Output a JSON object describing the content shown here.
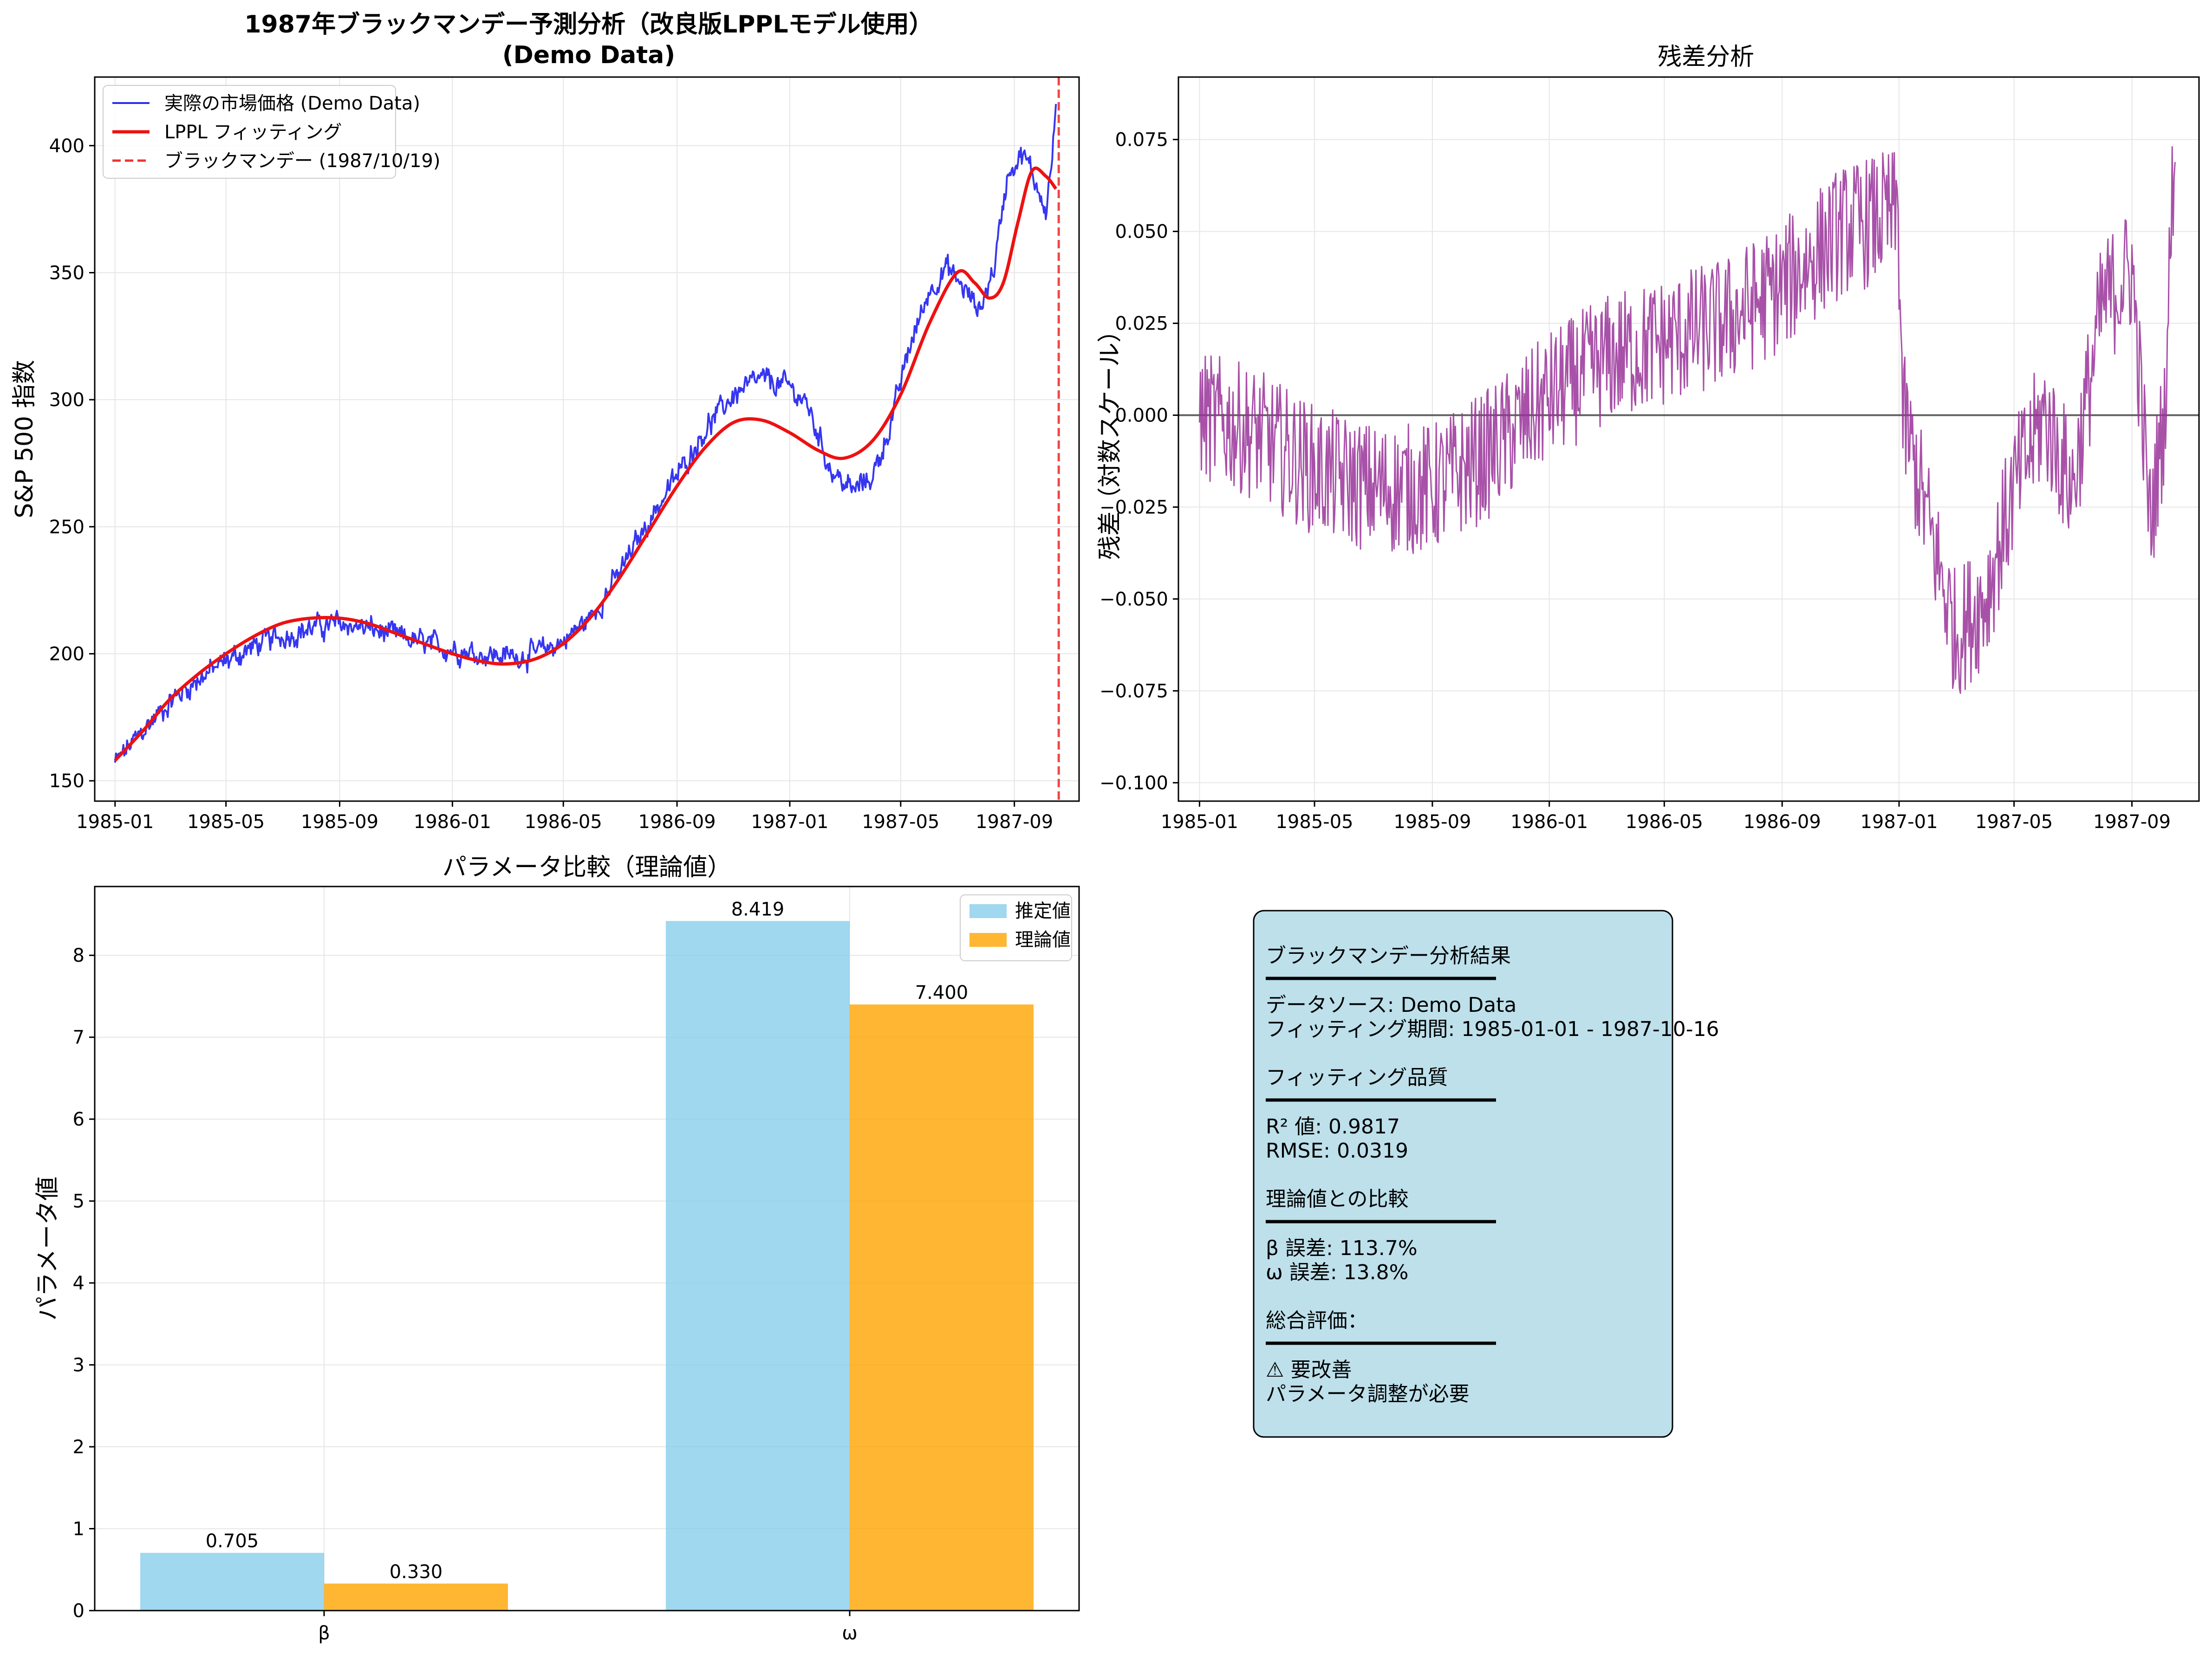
{
  "chart_data": [
    {
      "type": "line",
      "title": "1987年ブラックマンデー予測分析（改良版LPPLモデル使用）",
      "subtitle": "(Demo Data)",
      "xlabel": "",
      "ylabel": "S&P 500 指数",
      "x_ticks": [
        "1985-01",
        "1985-05",
        "1985-09",
        "1986-01",
        "1986-05",
        "1986-09",
        "1987-01",
        "1987-05",
        "1987-09"
      ],
      "y_ticks": [
        "150",
        "200",
        "250",
        "300",
        "350",
        "400"
      ],
      "xlim": [
        "1984-12-10",
        "1987-11-10"
      ],
      "ylim": [
        142,
        427
      ],
      "grid": true,
      "legend_position": "top-left",
      "series": [
        {
          "name": "実際の市場価格 (Demo Data)",
          "color": "#2b2bf0",
          "style": "noisy",
          "points": [
            [
              "1985-01-01",
              157
            ],
            [
              "1985-02-01",
              170
            ],
            [
              "1985-03-01",
              181
            ],
            [
              "1985-04-01",
              190
            ],
            [
              "1985-05-01",
              197
            ],
            [
              "1985-06-01",
              203
            ],
            [
              "1985-07-01",
              207
            ],
            [
              "1985-08-01",
              210
            ],
            [
              "1985-09-01",
              212
            ],
            [
              "1985-10-01",
              210
            ],
            [
              "1985-11-01",
              207
            ],
            [
              "1985-12-01",
              204
            ],
            [
              "1986-01-01",
              202
            ],
            [
              "1986-02-01",
              200
            ],
            [
              "1986-03-01",
              199
            ],
            [
              "1986-04-01",
              200
            ],
            [
              "1986-05-01",
              205
            ],
            [
              "1986-06-01",
              215
            ],
            [
              "1986-07-01",
              232
            ],
            [
              "1986-08-01",
              252
            ],
            [
              "1986-09-01",
              270
            ],
            [
              "1986-10-01",
              288
            ],
            [
              "1986-11-01",
              302
            ],
            [
              "1986-12-01",
              308
            ],
            [
              "1987-01-01",
              305
            ],
            [
              "1987-01-20",
              298
            ],
            [
              "1987-02-15",
              272
            ],
            [
              "1987-03-10",
              264
            ],
            [
              "1987-04-01",
              270
            ],
            [
              "1987-04-20",
              290
            ],
            [
              "1987-05-10",
              320
            ],
            [
              "1987-06-01",
              343
            ],
            [
              "1987-06-20",
              352
            ],
            [
              "1987-07-10",
              343
            ],
            [
              "1987-07-25",
              335
            ],
            [
              "1987-08-10",
              352
            ],
            [
              "1987-08-25",
              390
            ],
            [
              "1987-09-10",
              397
            ],
            [
              "1987-09-25",
              385
            ],
            [
              "1987-10-05",
              375
            ],
            [
              "1987-10-12",
              395
            ],
            [
              "1987-10-16",
              416
            ]
          ]
        },
        {
          "name": "LPPL フィッティング",
          "color": "#ee1111",
          "style": "smooth",
          "points": [
            [
              "1985-01-01",
              158
            ],
            [
              "1985-02-01",
              170
            ],
            [
              "1985-03-01",
              182
            ],
            [
              "1985-04-01",
              192
            ],
            [
              "1985-05-01",
              200
            ],
            [
              "1985-06-01",
              207
            ],
            [
              "1985-07-01",
              212
            ],
            [
              "1985-08-01",
              214
            ],
            [
              "1985-09-01",
              214
            ],
            [
              "1985-10-01",
              212
            ],
            [
              "1985-11-01",
              208
            ],
            [
              "1985-12-01",
              204
            ],
            [
              "1986-01-01",
              200
            ],
            [
              "1986-02-01",
              197
            ],
            [
              "1986-03-01",
              196
            ],
            [
              "1986-04-01",
              198
            ],
            [
              "1986-05-01",
              204
            ],
            [
              "1986-06-01",
              215
            ],
            [
              "1986-07-01",
              230
            ],
            [
              "1986-08-01",
              248
            ],
            [
              "1986-09-01",
              266
            ],
            [
              "1986-10-01",
              281
            ],
            [
              "1986-11-01",
              291
            ],
            [
              "1986-12-01",
              292
            ],
            [
              "1987-01-01",
              287
            ],
            [
              "1987-02-01",
              280
            ],
            [
              "1987-03-01",
              277
            ],
            [
              "1987-04-01",
              284
            ],
            [
              "1987-05-01",
              302
            ],
            [
              "1987-06-01",
              330
            ],
            [
              "1987-07-01",
              350
            ],
            [
              "1987-07-20",
              346
            ],
            [
              "1987-08-05",
              340
            ],
            [
              "1987-08-20",
              346
            ],
            [
              "1987-09-05",
              370
            ],
            [
              "1987-09-20",
              390
            ],
            [
              "1987-10-05",
              388
            ],
            [
              "1987-10-16",
              383
            ]
          ]
        },
        {
          "name": "ブラックマンデー (1987/10/19)",
          "color": "#ee3333",
          "style": "vline",
          "x": "1987-10-19"
        }
      ]
    },
    {
      "type": "line",
      "title": "残差分析",
      "xlabel": "",
      "ylabel": "残差（対数スケール）",
      "x_ticks": [
        "1985-01",
        "1985-05",
        "1985-09",
        "1986-01",
        "1986-05",
        "1986-09",
        "1987-01",
        "1987-05",
        "1987-09"
      ],
      "y_ticks": [
        "0.075",
        "0.050",
        "0.025",
        "0.000",
        "−0.025",
        "−0.050",
        "−0.075",
        "−0.100"
      ],
      "xlim": [
        "1984-12-10",
        "1987-11-10"
      ],
      "ylim": [
        -0.105,
        0.092
      ],
      "grid": true,
      "zero_line": true,
      "series": [
        {
          "name": "",
          "color": "#993399",
          "trend": [
            [
              "1985-01-01",
              0.0
            ],
            [
              "1985-03-01",
              -0.005
            ],
            [
              "1985-05-01",
              -0.015
            ],
            [
              "1985-07-01",
              -0.02
            ],
            [
              "1985-09-01",
              -0.02
            ],
            [
              "1985-11-01",
              -0.01
            ],
            [
              "1986-01-01",
              0.005
            ],
            [
              "1986-03-01",
              0.015
            ],
            [
              "1986-05-01",
              0.02
            ],
            [
              "1986-07-01",
              0.025
            ],
            [
              "1986-09-01",
              0.035
            ],
            [
              "1986-11-01",
              0.05
            ],
            [
              "1986-12-31",
              0.055
            ],
            [
              "1987-01-05",
              0.0
            ],
            [
              "1987-02-01",
              -0.03
            ],
            [
              "1987-03-01",
              -0.06
            ],
            [
              "1987-04-01",
              -0.05
            ],
            [
              "1987-05-01",
              -0.02
            ],
            [
              "1987-06-01",
              0.0
            ],
            [
              "1987-07-01",
              -0.02
            ],
            [
              "1987-08-01",
              0.03
            ],
            [
              "1987-09-01",
              0.04
            ],
            [
              "1987-09-20",
              -0.03
            ],
            [
              "1987-10-05",
              0.0
            ],
            [
              "1987-10-16",
              0.08
            ]
          ],
          "noise_amplitude": 0.018
        }
      ]
    },
    {
      "type": "bar",
      "title": "パラメータ比較（理論値）",
      "xlabel": "",
      "ylabel": "パラメータ値",
      "categories": [
        "β",
        "ω"
      ],
      "y_ticks": [
        "0",
        "1",
        "2",
        "3",
        "4",
        "5",
        "6",
        "7",
        "8"
      ],
      "ylim": [
        0,
        8.84
      ],
      "grid": true,
      "legend_position": "top-right",
      "series": [
        {
          "name": "推定値",
          "color": "#87ceeb",
          "values": [
            0.705,
            8.419
          ],
          "labels": [
            "0.705",
            "8.419"
          ]
        },
        {
          "name": "理論値",
          "color": "#ffa500",
          "values": [
            0.33,
            7.4
          ],
          "labels": [
            "0.330",
            "7.400"
          ]
        }
      ]
    }
  ],
  "info_box": {
    "sections": [
      {
        "header": "ブラックマンデー分析結果",
        "lines": [
          "データソース: Demo Data",
          "フィッティング期間: 1985-01-01 - 1987-10-16"
        ]
      },
      {
        "header": "フィッティング品質",
        "lines": [
          "R² 値: 0.9817",
          "RMSE: 0.0319"
        ]
      },
      {
        "header": "理論値との比較",
        "lines": [
          "β 誤差: 113.7%",
          "ω 誤差: 13.8%"
        ]
      },
      {
        "header": "総合評価：",
        "lines": [
          "⚠  要改善",
          "パラメータ調整が必要"
        ]
      }
    ],
    "bg_color": "#add8e6"
  }
}
